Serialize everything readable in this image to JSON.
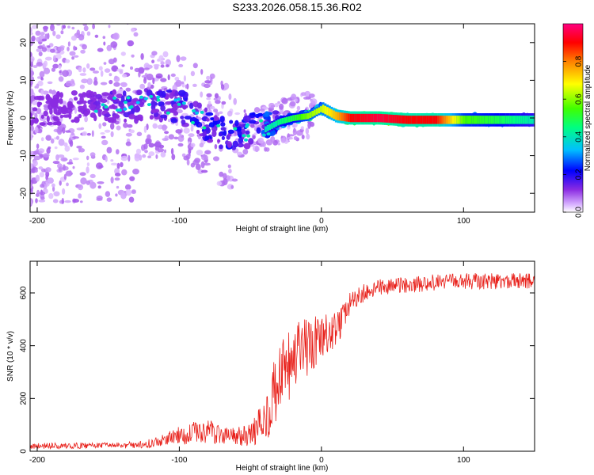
{
  "title": "S233.2026.058.15.36.R02",
  "chart_data": [
    {
      "type": "heatmap",
      "panel": "spectrogram",
      "xlabel": "Height of straight line (km)",
      "ylabel": "Frequency (Hz)",
      "xlim": [
        -205,
        150
      ],
      "ylim": [
        -25,
        25
      ],
      "xticks": [
        -200,
        -100,
        0,
        100
      ],
      "yticks": [
        -20,
        -10,
        0,
        10,
        20
      ],
      "colorbar": {
        "label": "Normalized spectral amplitude",
        "ticks": [
          0.0,
          0.2,
          0.4,
          0.6,
          0.8
        ],
        "range": [
          0,
          1
        ],
        "colors": [
          "#ffffff",
          "#d9b3ff",
          "#8a2be2",
          "#3000ff",
          "#0000ff",
          "#00c8ff",
          "#00ff80",
          "#40ff00",
          "#ffff00",
          "#ff8000",
          "#ff0000",
          "#ff0080"
        ]
      },
      "ridge": {
        "x": [
          -200,
          -180,
          -160,
          -140,
          -120,
          -100,
          -90,
          -80,
          -70,
          -60,
          -50,
          -40,
          -30,
          -20,
          -10,
          0,
          10,
          20,
          40,
          60,
          80,
          100,
          120,
          150
        ],
        "freq": [
          2,
          2.5,
          3,
          3,
          3.5,
          3,
          1,
          -2,
          -4,
          -5,
          -3,
          -3,
          -1,
          0,
          0.5,
          2.5,
          0.5,
          0,
          0,
          -0.5,
          -0.5,
          -0.5,
          -0.5,
          -0.5
        ],
        "amplitude": [
          0.15,
          0.15,
          0.2,
          0.25,
          0.25,
          0.25,
          0.3,
          0.3,
          0.3,
          0.3,
          0.35,
          0.4,
          0.45,
          0.5,
          0.6,
          0.65,
          0.75,
          0.9,
          0.95,
          0.9,
          0.9,
          0.55,
          0.5,
          0.4
        ]
      }
    },
    {
      "type": "line",
      "panel": "snr",
      "xlabel": "Height of straight line (km)",
      "ylabel": "SNR (10 * v/v)",
      "xlim": [
        -205,
        150
      ],
      "ylim": [
        0,
        720
      ],
      "xticks": [
        -200,
        -100,
        0,
        100
      ],
      "yticks": [
        0,
        200,
        400,
        600
      ],
      "color": "#e8201a",
      "series": [
        {
          "name": "SNR",
          "x": [
            -205,
            -180,
            -160,
            -140,
            -130,
            -120,
            -110,
            -100,
            -90,
            -80,
            -70,
            -60,
            -50,
            -40,
            -35,
            -30,
            -25,
            -20,
            -15,
            -10,
            -5,
            0,
            5,
            10,
            15,
            20,
            30,
            40,
            60,
            80,
            100,
            120,
            150
          ],
          "values": [
            20,
            20,
            22,
            22,
            25,
            30,
            45,
            60,
            70,
            75,
            65,
            55,
            60,
            120,
            190,
            250,
            300,
            330,
            370,
            390,
            400,
            420,
            440,
            460,
            500,
            560,
            600,
            620,
            630,
            640,
            645,
            645,
            645
          ],
          "noise": [
            8,
            8,
            8,
            8,
            10,
            12,
            15,
            25,
            30,
            35,
            30,
            25,
            30,
            60,
            90,
            100,
            110,
            100,
            90,
            90,
            80,
            70,
            60,
            50,
            40,
            30,
            25,
            22,
            22,
            22,
            22,
            22,
            22
          ]
        }
      ]
    }
  ]
}
